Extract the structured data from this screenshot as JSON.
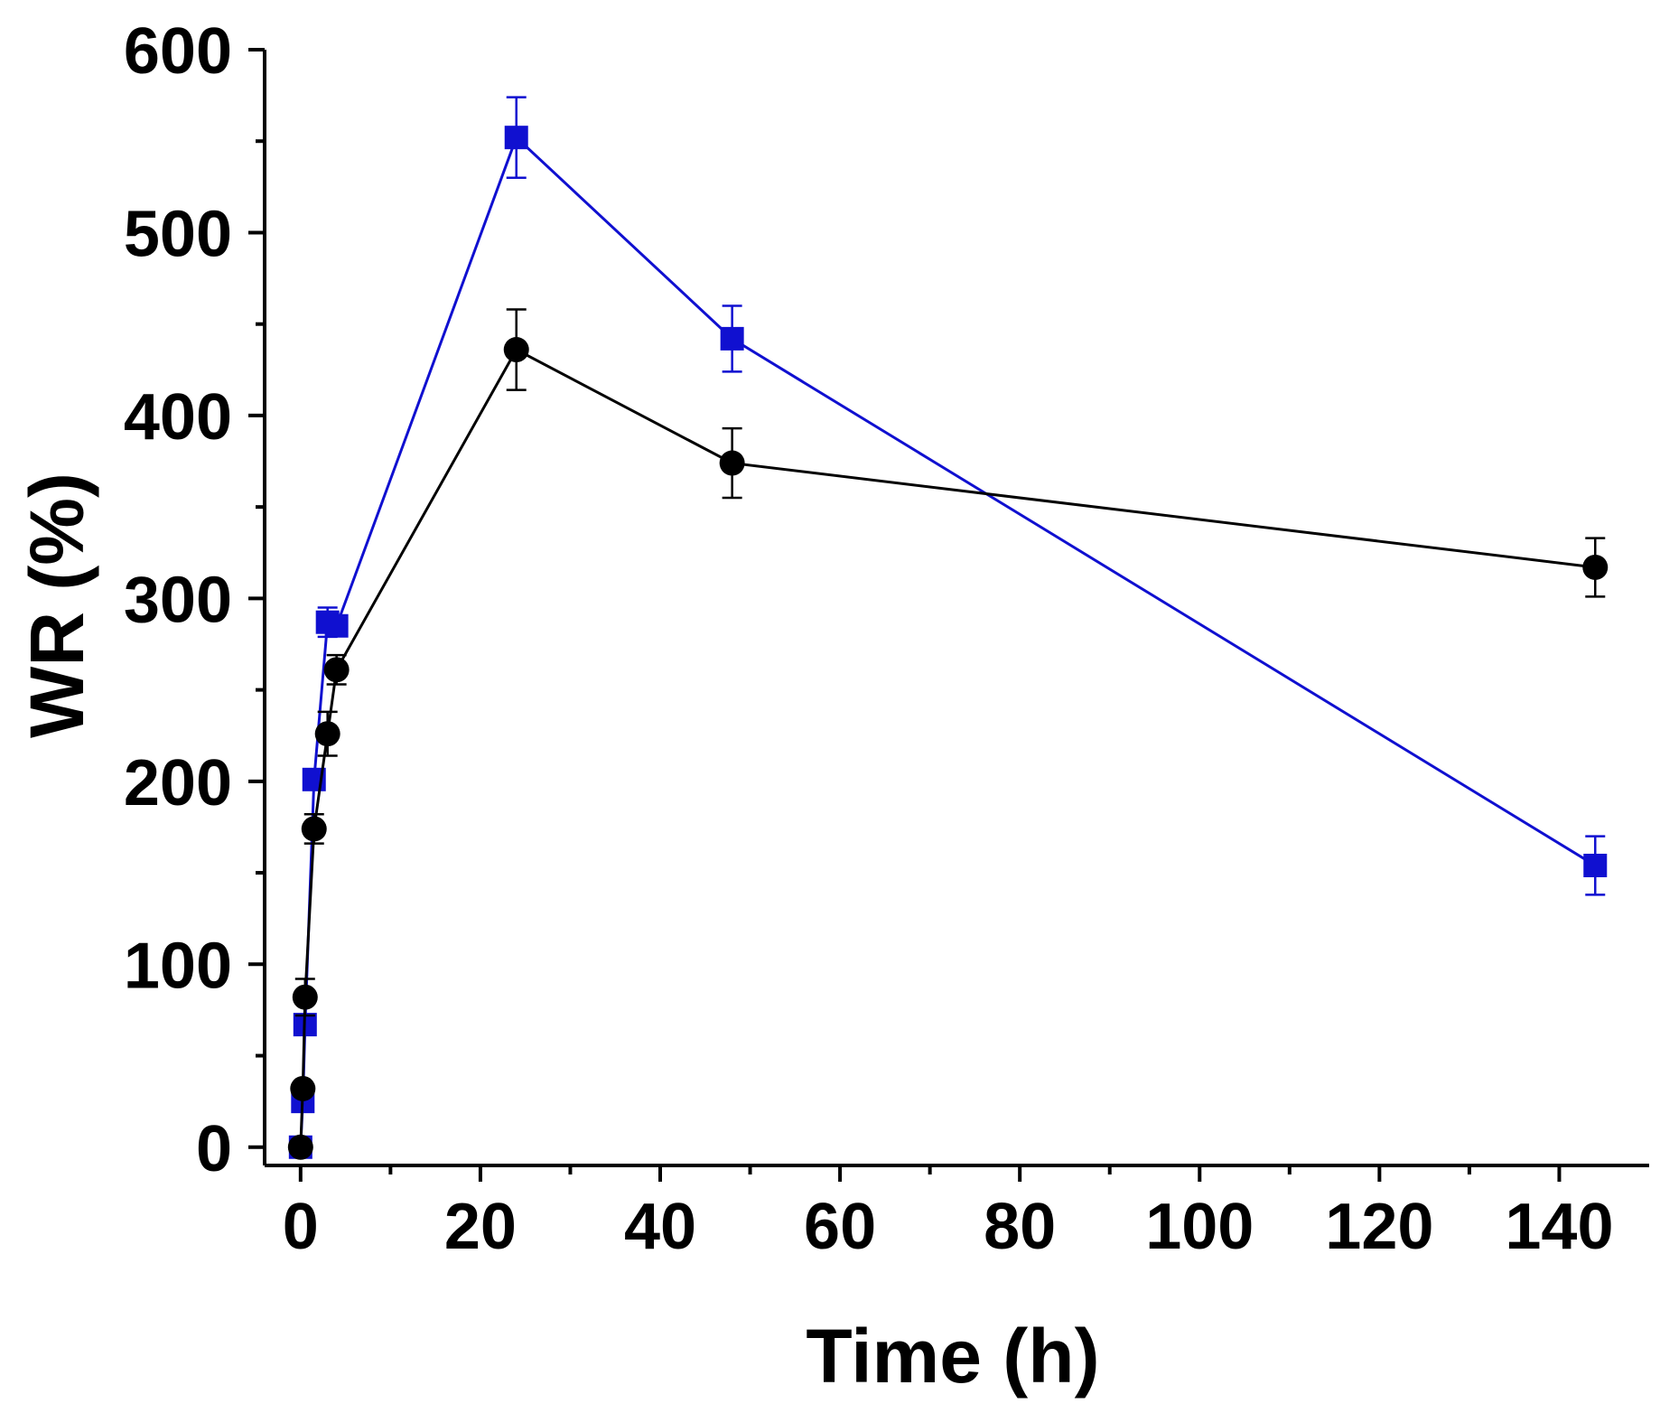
{
  "chart_data": {
    "type": "line",
    "title": "",
    "xlabel": "Time (h)",
    "ylabel": "WR (%)",
    "xlim": [
      -4,
      150
    ],
    "ylim": [
      -10,
      600
    ],
    "xticks": [
      0,
      20,
      40,
      60,
      80,
      100,
      120,
      140
    ],
    "yticks": [
      0,
      100,
      200,
      300,
      400,
      500,
      600
    ],
    "grid": false,
    "legend": "none",
    "series": [
      {
        "name": "blue squares",
        "color": "#1010d0",
        "marker": "square",
        "x": [
          0,
          0.25,
          0.5,
          1.5,
          3,
          4,
          24,
          48,
          144
        ],
        "y": [
          0,
          25,
          67,
          201,
          287,
          285,
          552,
          442,
          154
        ],
        "err": [
          0,
          0,
          0,
          0,
          8,
          0,
          22,
          18,
          16
        ]
      },
      {
        "name": "black circles",
        "color": "#000000",
        "marker": "circle",
        "x": [
          0,
          0.25,
          0.5,
          1.5,
          3,
          4,
          24,
          48,
          144
        ],
        "y": [
          0,
          32,
          82,
          174,
          226,
          261,
          436,
          374,
          317
        ],
        "err": [
          0,
          0,
          10,
          8,
          12,
          8,
          22,
          19,
          16
        ]
      }
    ]
  }
}
